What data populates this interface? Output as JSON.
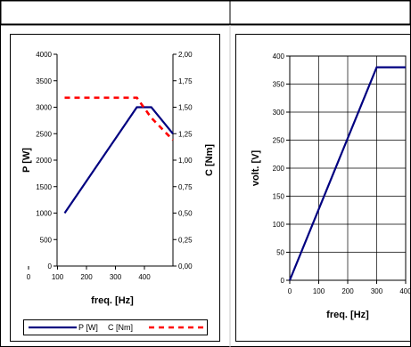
{
  "chart_data": [
    {
      "type": "line",
      "x": [
        100,
        300,
        340,
        400
      ],
      "xlabel": "freq. [Hz]",
      "ylabel": "P [W]",
      "y2label": "C [Nm]",
      "xlim": [
        0,
        400
      ],
      "ylim": [
        0,
        4000
      ],
      "y2lim": [
        0,
        2.0
      ],
      "xticks": [
        "0",
        "100",
        "200",
        "300",
        "400"
      ],
      "yticks": [
        "0",
        "500",
        "1000",
        "1500",
        "2000",
        "2500",
        "3000",
        "3500",
        "4000"
      ],
      "y2ticks": [
        "0,00",
        "0,25",
        "0,50",
        "0,75",
        "1,00",
        "1,25",
        "1,50",
        "1,75",
        "2,00"
      ],
      "grid": false,
      "legend_position": "bottom",
      "series": [
        {
          "name": "P [W]",
          "axis": "left",
          "color": "#000080",
          "style": "solid",
          "points": [
            [
              100,
              1000
            ],
            [
              300,
              3000
            ],
            [
              340,
              3000
            ],
            [
              400,
              2500
            ]
          ]
        },
        {
          "name": "C [Nm]",
          "axis": "right",
          "color": "#ff0000",
          "style": "dashed",
          "points": [
            [
              100,
              1.59
            ],
            [
              300,
              1.59
            ],
            [
              340,
              1.4
            ],
            [
              400,
              1.19
            ]
          ]
        }
      ]
    },
    {
      "type": "line",
      "xlabel": "freq. [Hz]",
      "ylabel": "volt. [V]",
      "xlim": [
        0,
        400
      ],
      "ylim": [
        0,
        400
      ],
      "xticks": [
        "0",
        "100",
        "200",
        "300",
        "400"
      ],
      "yticks": [
        "0",
        "50",
        "100",
        "150",
        "200",
        "250",
        "300",
        "350",
        "400"
      ],
      "grid": true,
      "series": [
        {
          "axis": "left",
          "color": "#000080",
          "style": "solid",
          "points": [
            [
              0,
              0
            ],
            [
              300,
              380
            ],
            [
              400,
              380
            ]
          ]
        }
      ]
    }
  ]
}
